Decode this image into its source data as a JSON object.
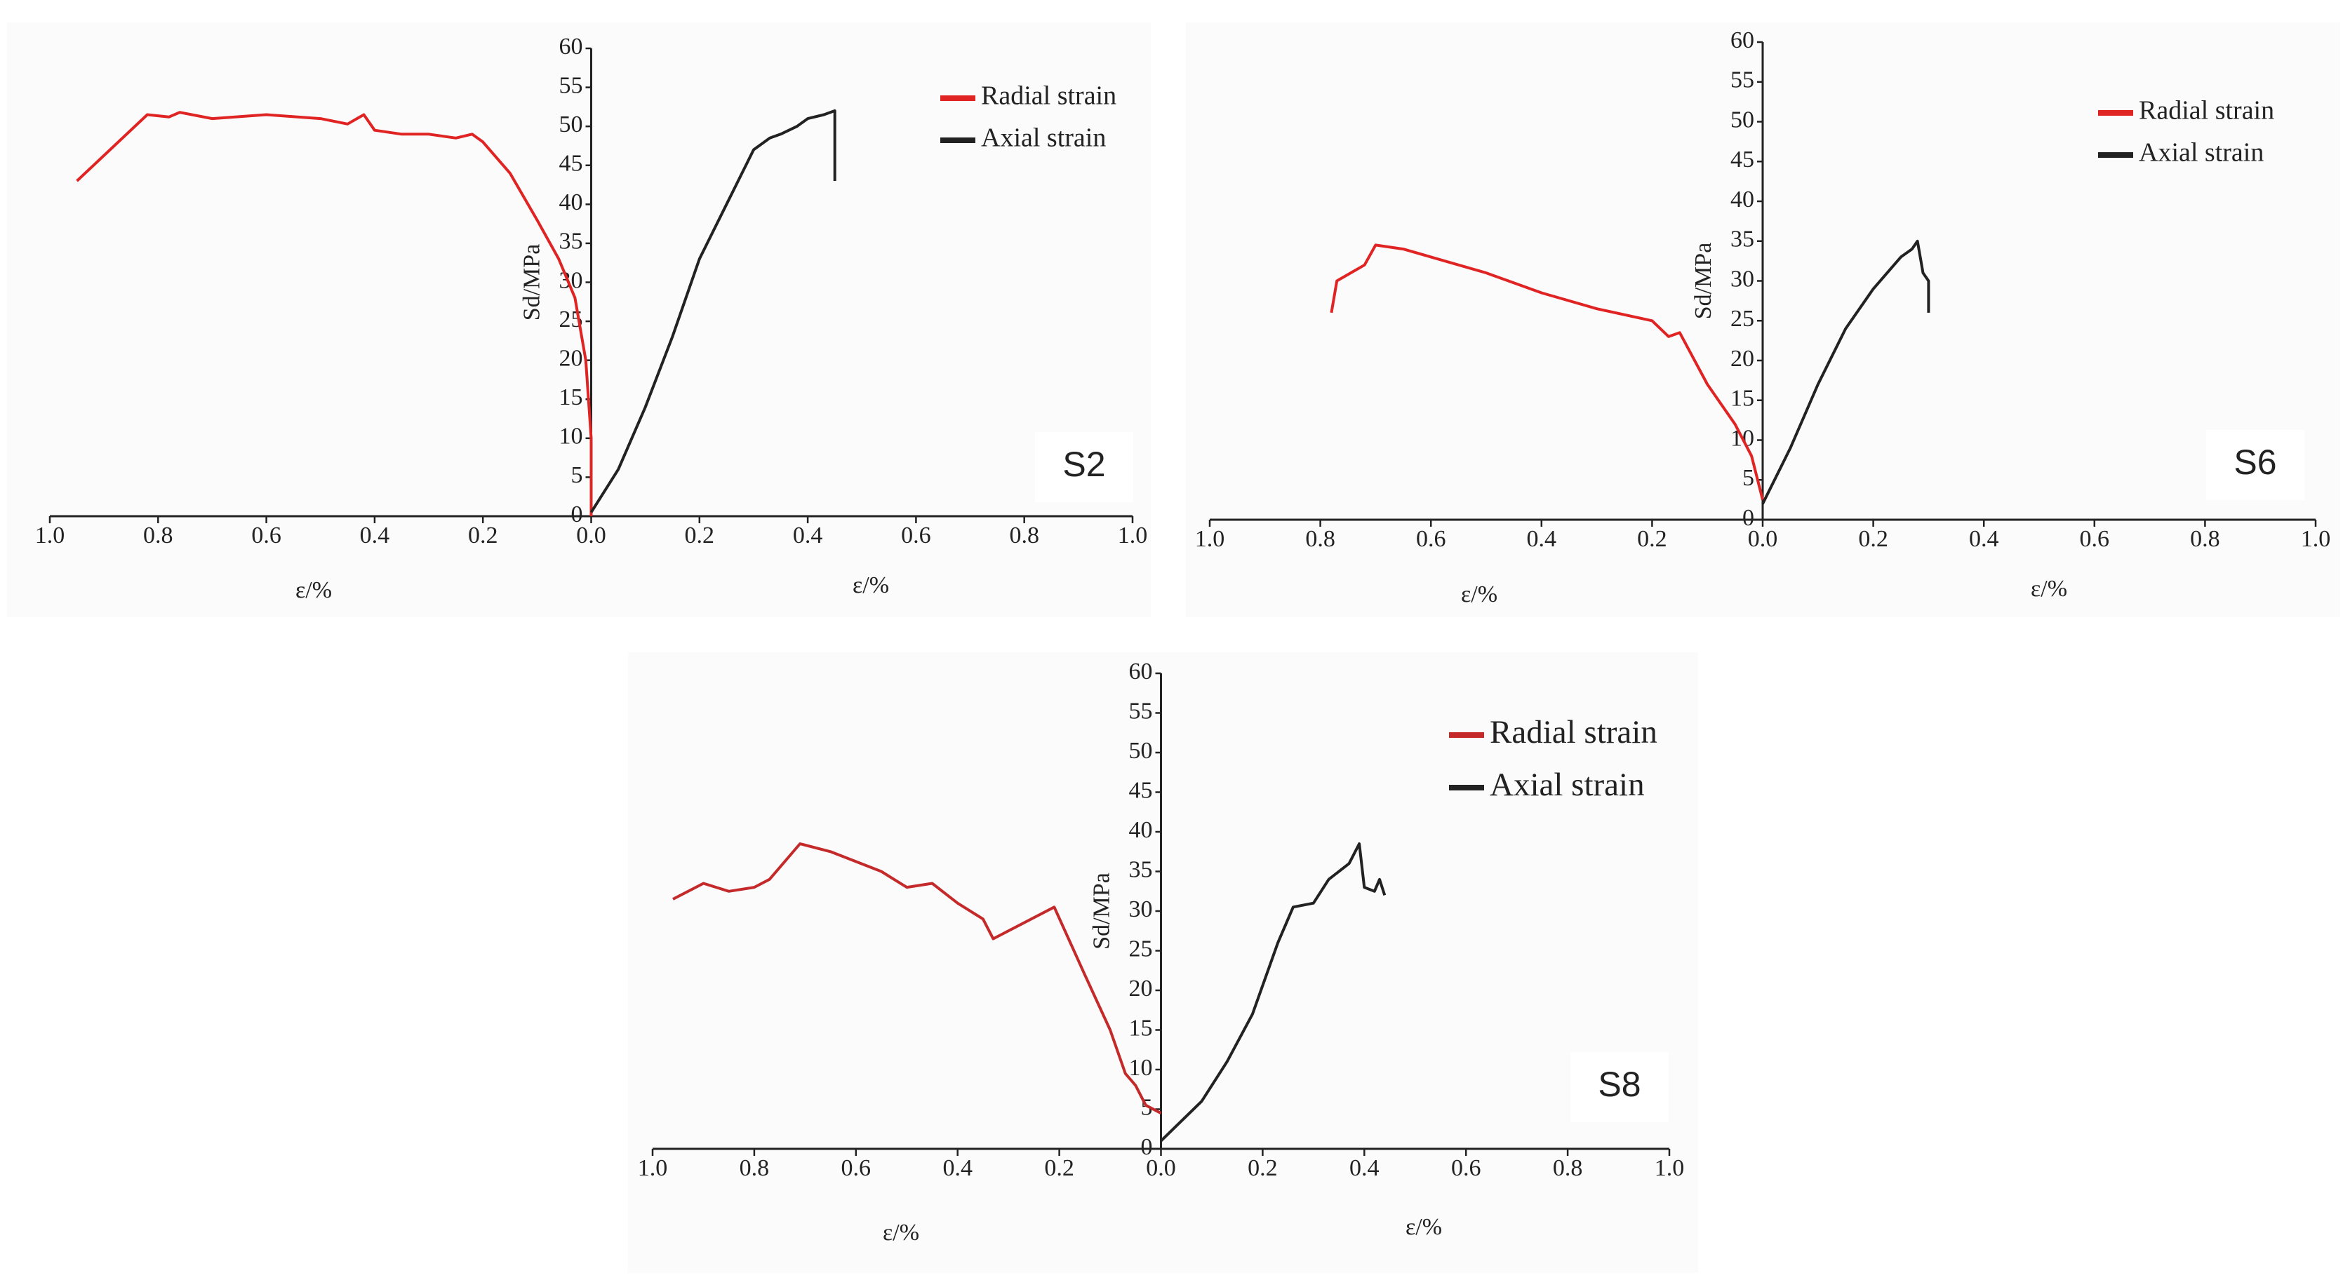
{
  "chart_data": [
    {
      "type": "line",
      "ylabel": "Sd/MPa",
      "xlabels": [
        "ε/%",
        "ε/%"
      ],
      "panel_label": "S2",
      "xlim": [
        -1,
        1
      ],
      "ylim": [
        0,
        60
      ],
      "xticks": [
        {
          "value": -1,
          "label": "1.0"
        },
        {
          "value": -0.8,
          "label": "0.8"
        },
        {
          "value": -0.6,
          "label": "0.6"
        },
        {
          "value": -0.4,
          "label": "0.4"
        },
        {
          "value": -0.2,
          "label": "0.2"
        },
        {
          "value": 0,
          "label": "0.0"
        },
        0.2,
        0.4,
        0.6,
        0.8,
        {
          "value": 1,
          "label": "1.0"
        }
      ],
      "yticks": [
        0,
        5,
        10,
        15,
        20,
        25,
        30,
        35,
        40,
        45,
        50,
        55,
        60
      ],
      "series": [
        {
          "name": "Radial strain",
          "color": "#e02424",
          "x": [
            -0.95,
            -0.82,
            -0.78,
            -0.76,
            -0.7,
            -0.6,
            -0.5,
            -0.45,
            -0.42,
            -0.4,
            -0.35,
            -0.3,
            -0.25,
            -0.22,
            -0.2,
            -0.15,
            -0.1,
            -0.06,
            -0.03,
            -0.01,
            0,
            0
          ],
          "values": [
            43,
            51.5,
            51.2,
            51.8,
            51,
            51.5,
            51,
            50.3,
            51.5,
            49.5,
            49,
            49,
            48.5,
            49,
            48,
            44,
            38,
            33,
            28,
            20,
            10,
            0
          ]
        },
        {
          "name": "Axial strain",
          "color": "#222222",
          "x": [
            0,
            0.05,
            0.1,
            0.15,
            0.2,
            0.25,
            0.3,
            0.33,
            0.35,
            0.38,
            0.4,
            0.43,
            0.45,
            0.45
          ],
          "values": [
            0.5,
            6,
            14,
            23,
            33,
            40,
            47,
            48.5,
            49,
            50,
            51,
            51.5,
            52,
            43
          ]
        }
      ]
    },
    {
      "type": "line",
      "ylabel": "Sd/MPa",
      "xlabels": [
        "ε/%",
        "ε/%"
      ],
      "panel_label": "S6",
      "xlim": [
        -1,
        1
      ],
      "ylim": [
        0,
        60
      ],
      "xticks": [
        {
          "value": -1,
          "label": "1.0"
        },
        {
          "value": -0.8,
          "label": "0.8"
        },
        {
          "value": -0.6,
          "label": "0.6"
        },
        {
          "value": -0.4,
          "label": "0.4"
        },
        {
          "value": -0.2,
          "label": "0.2"
        },
        {
          "value": 0,
          "label": "0.0"
        },
        0.2,
        0.4,
        0.6,
        0.8,
        {
          "value": 1,
          "label": "1.0"
        }
      ],
      "yticks": [
        0,
        5,
        10,
        15,
        20,
        25,
        30,
        35,
        40,
        45,
        50,
        55,
        60
      ],
      "series": [
        {
          "name": "Radial strain",
          "color": "#e02424",
          "x": [
            -0.78,
            -0.77,
            -0.72,
            -0.7,
            -0.65,
            -0.6,
            -0.5,
            -0.4,
            -0.3,
            -0.2,
            -0.17,
            -0.15,
            -0.1,
            -0.05,
            -0.02,
            0
          ],
          "values": [
            26,
            30,
            32,
            34.5,
            34,
            33,
            31,
            28.5,
            26.5,
            25,
            23,
            23.5,
            17,
            12,
            8,
            2.5
          ]
        },
        {
          "name": "Axial strain",
          "color": "#222222",
          "x": [
            0,
            0.05,
            0.1,
            0.15,
            0.2,
            0.25,
            0.27,
            0.28,
            0.29,
            0.3,
            0.3
          ],
          "values": [
            2,
            9,
            17,
            24,
            29,
            33,
            34,
            35,
            31,
            30,
            26
          ]
        }
      ]
    },
    {
      "type": "line",
      "ylabel": "Sd/MPa",
      "xlabels": [
        "ε/%",
        "ε/%"
      ],
      "panel_label": "S8",
      "xlim": [
        -1,
        1
      ],
      "ylim": [
        0,
        60
      ],
      "xticks": [
        {
          "value": -1,
          "label": "1.0"
        },
        {
          "value": -0.8,
          "label": "0.8"
        },
        {
          "value": -0.6,
          "label": "0.6"
        },
        {
          "value": -0.4,
          "label": "0.4"
        },
        {
          "value": -0.2,
          "label": "0.2"
        },
        {
          "value": 0,
          "label": "0.0"
        },
        0.2,
        0.4,
        0.6,
        0.8,
        {
          "value": 1,
          "label": "1.0"
        }
      ],
      "yticks": [
        0,
        5,
        10,
        15,
        20,
        25,
        30,
        35,
        40,
        45,
        50,
        55,
        60
      ],
      "series": [
        {
          "name": "Radial strain",
          "color": "#c42a2a",
          "x": [
            -0.96,
            -0.9,
            -0.85,
            -0.8,
            -0.77,
            -0.71,
            -0.65,
            -0.55,
            -0.5,
            -0.45,
            -0.4,
            -0.35,
            -0.33,
            -0.21,
            -0.15,
            -0.1,
            -0.07,
            -0.05,
            -0.03,
            0
          ],
          "values": [
            31.5,
            33.5,
            32.5,
            33,
            34,
            38.5,
            37.5,
            35,
            33,
            33.5,
            31,
            29,
            26.5,
            30.5,
            22,
            15,
            9.5,
            8,
            5.5,
            4.5
          ]
        },
        {
          "name": "Axial strain",
          "color": "#222222",
          "x": [
            0,
            0.08,
            0.13,
            0.18,
            0.23,
            0.26,
            0.3,
            0.33,
            0.37,
            0.39,
            0.4,
            0.42,
            0.43,
            0.44
          ],
          "values": [
            1,
            6,
            11,
            17,
            26,
            30.5,
            31,
            34,
            36,
            38.5,
            33,
            32.5,
            34,
            32
          ]
        }
      ]
    }
  ]
}
